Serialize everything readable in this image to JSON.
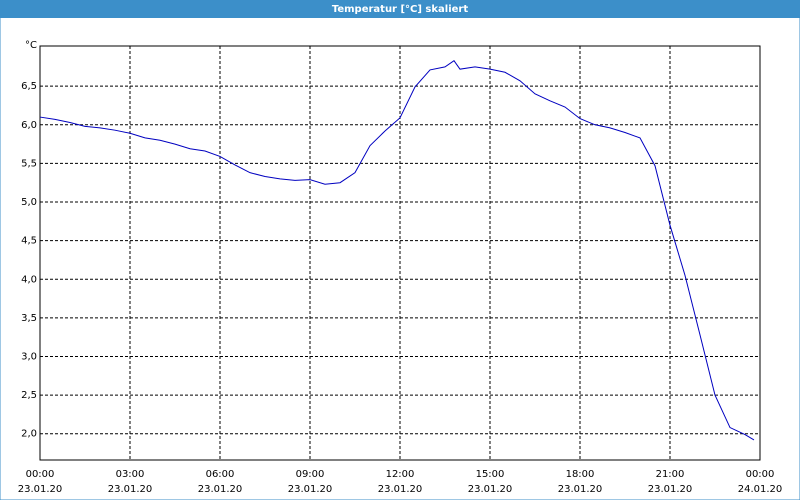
{
  "chart_data": {
    "type": "line",
    "title": "Temperatur [°C] skaliert",
    "y_unit": "°C",
    "x": [
      0,
      0.5,
      1,
      1.5,
      2,
      2.5,
      3,
      3.5,
      4,
      4.5,
      5,
      5.5,
      6,
      6.5,
      7,
      7.5,
      8,
      8.5,
      9,
      9.5,
      10,
      10.5,
      11,
      11.5,
      12,
      12.5,
      13,
      13.5,
      13.8,
      14,
      14.5,
      15,
      15.5,
      16,
      16.5,
      17,
      17.5,
      18,
      18.5,
      19,
      19.5,
      20,
      20.5,
      21,
      21.5,
      22,
      22.5,
      23,
      23.5,
      23.8
    ],
    "series": [
      {
        "color": "#0000c0",
        "values": [
          6.1,
          6.07,
          6.03,
          5.98,
          5.96,
          5.93,
          5.89,
          5.83,
          5.8,
          5.75,
          5.69,
          5.66,
          5.59,
          5.48,
          5.38,
          5.33,
          5.3,
          5.28,
          5.29,
          5.23,
          5.25,
          5.38,
          5.73,
          5.92,
          6.09,
          6.49,
          6.71,
          6.75,
          6.83,
          6.72,
          6.75,
          6.72,
          6.68,
          6.57,
          6.4,
          6.31,
          6.23,
          6.08,
          6.0,
          5.96,
          5.9,
          5.83,
          5.47,
          4.7,
          4.05,
          3.28,
          2.5,
          2.08,
          1.99,
          1.92
        ]
      }
    ],
    "xlim": [
      0,
      24
    ],
    "xticks": [
      {
        "value": 0,
        "label": [
          "00:00",
          "23.01.20"
        ]
      },
      {
        "value": 3,
        "label": [
          "03:00",
          "23.01.20"
        ]
      },
      {
        "value": 6,
        "label": [
          "06:00",
          "23.01.20"
        ]
      },
      {
        "value": 9,
        "label": [
          "09:00",
          "23.01.20"
        ]
      },
      {
        "value": 12,
        "label": [
          "12:00",
          "23.01.20"
        ]
      },
      {
        "value": 15,
        "label": [
          "15:00",
          "23.01.20"
        ]
      },
      {
        "value": 18,
        "label": [
          "18:00",
          "23.01.20"
        ]
      },
      {
        "value": 21,
        "label": [
          "21:00",
          "23.01.20"
        ]
      },
      {
        "value": 24,
        "label": [
          "00:00",
          "24.01.20"
        ]
      }
    ],
    "ylim": [
      1.66,
      7.02
    ],
    "yticks": [
      {
        "value": 2,
        "label": "2,0"
      },
      {
        "value": 2.5,
        "label": "2,5"
      },
      {
        "value": 3,
        "label": "3,0"
      },
      {
        "value": 3.5,
        "label": "3,5"
      },
      {
        "value": 4,
        "label": "4,0"
      },
      {
        "value": 4.5,
        "label": "4,5"
      },
      {
        "value": 5,
        "label": "5,0"
      },
      {
        "value": 5.5,
        "label": "5,5"
      },
      {
        "value": 6,
        "label": "6,0"
      },
      {
        "value": 6.5,
        "label": "6,5"
      }
    ],
    "grid": true
  }
}
